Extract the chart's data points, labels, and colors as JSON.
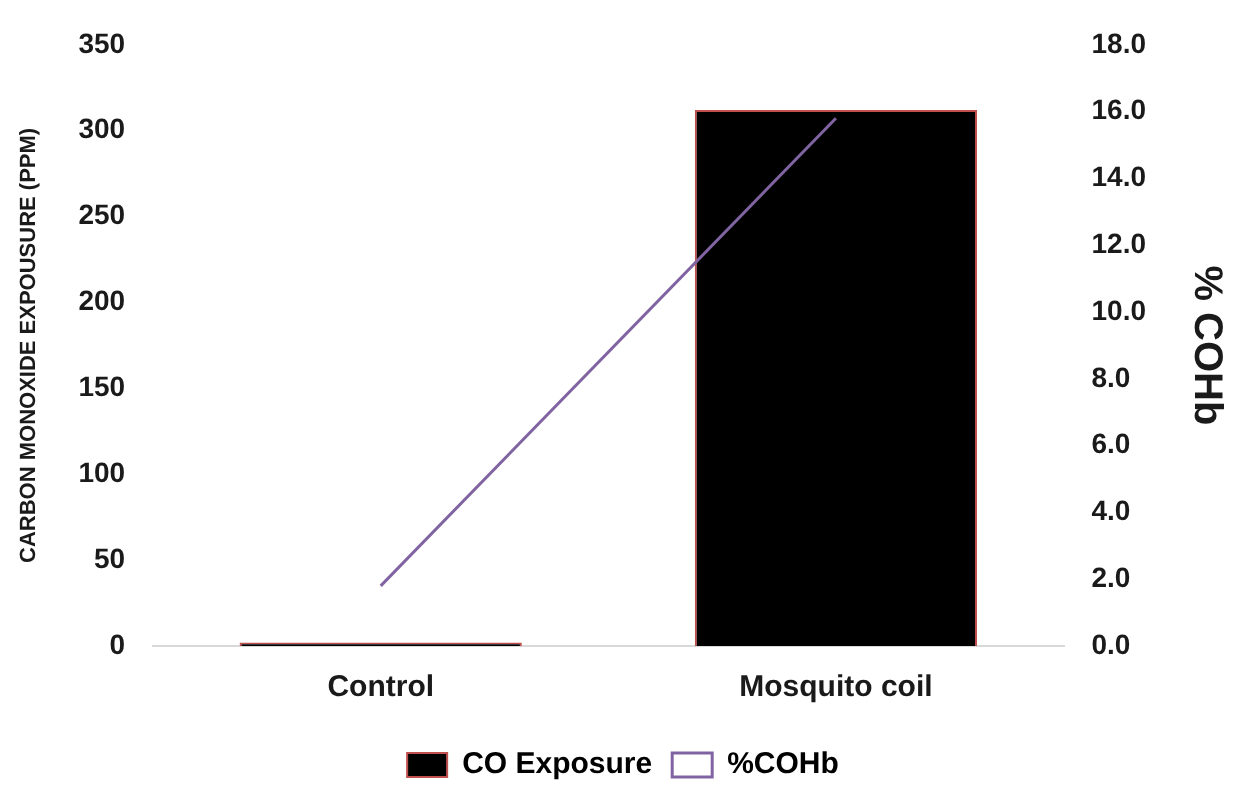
{
  "chart_data": {
    "type": "bar",
    "categories": [
      "Control",
      "Mosquito coil"
    ],
    "ylabel": "CARBON MONOXIDE EXPOUSURE (PPM)",
    "y2label": "% COHb",
    "series": [
      {
        "name": "CO Exposure",
        "color": "#000000",
        "values": [
          2,
          312
        ]
      },
      {
        "name": "%COHb",
        "type": "line",
        "axis": "y2",
        "color": "#8064a2",
        "values": [
          1.8,
          15.8
        ]
      }
    ],
    "ylim": [
      0,
      350
    ],
    "yticks": [
      0,
      50,
      100,
      150,
      200,
      250,
      300,
      350
    ],
    "y2lim": [
      0,
      18
    ],
    "y2ticks": [
      {
        "value": 0,
        "label": "0.0"
      },
      {
        "value": 2,
        "label": "2.0"
      },
      {
        "value": 4,
        "label": "4.0"
      },
      {
        "value": 6,
        "label": "6.0"
      },
      {
        "value": 8,
        "label": "8.0"
      },
      {
        "value": 10,
        "label": "10.0"
      },
      {
        "value": 12,
        "label": "12.0"
      },
      {
        "value": 14,
        "label": "14.0"
      },
      {
        "value": 16,
        "label": "16.0"
      },
      {
        "value": 18,
        "label": "18.0"
      }
    ],
    "legend": "bottom",
    "grid": false,
    "marker": "none",
    "line_style": "solid"
  }
}
